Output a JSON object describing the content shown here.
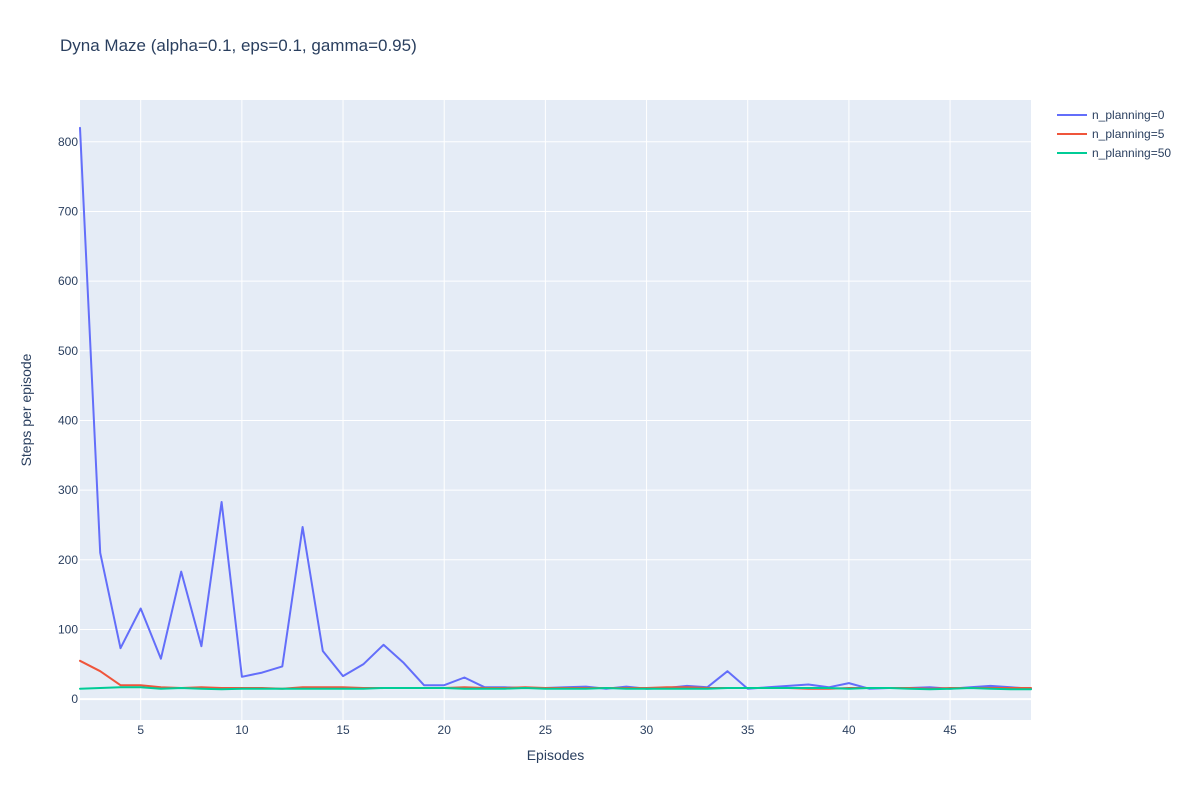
{
  "chart_data": {
    "type": "line",
    "title": "Dyna Maze (alpha=0.1, eps=0.1, gamma=0.95)",
    "xlabel": "Episodes",
    "ylabel": "Steps per episode",
    "xlim": [
      2,
      49
    ],
    "ylim": [
      -30,
      860
    ],
    "xticks": [
      5,
      10,
      15,
      20,
      25,
      30,
      35,
      40,
      45
    ],
    "yticks": [
      0,
      100,
      200,
      300,
      400,
      500,
      600,
      700,
      800
    ],
    "grid": true,
    "background": "#e5ecf6",
    "legend_position": "top-right",
    "x": [
      2,
      3,
      4,
      5,
      6,
      7,
      8,
      9,
      10,
      11,
      12,
      13,
      14,
      15,
      16,
      17,
      18,
      19,
      20,
      21,
      22,
      23,
      24,
      25,
      26,
      27,
      28,
      29,
      30,
      31,
      32,
      33,
      34,
      35,
      36,
      37,
      38,
      39,
      40,
      41,
      42,
      43,
      44,
      45,
      46,
      47,
      48,
      49
    ],
    "series": [
      {
        "name": "n_planning=0",
        "color": "#636efa",
        "values": [
          820,
          210,
          73,
          130,
          58,
          183,
          76,
          283,
          32,
          38,
          47,
          247,
          69,
          33,
          50,
          78,
          52,
          20,
          20,
          31,
          17,
          17,
          16,
          16,
          17,
          18,
          15,
          18,
          15,
          16,
          19,
          17,
          40,
          15,
          17,
          19,
          21,
          17,
          23,
          15,
          16,
          16,
          17,
          15,
          17,
          19,
          17,
          15
        ]
      },
      {
        "name": "n_planning=5",
        "color": "#ef553b",
        "values": [
          55,
          40,
          20,
          20,
          17,
          16,
          17,
          16,
          16,
          16,
          15,
          17,
          17,
          17,
          16,
          16,
          16,
          16,
          16,
          17,
          16,
          16,
          17,
          16,
          16,
          16,
          16,
          16,
          16,
          17,
          17,
          16,
          16,
          16,
          16,
          16,
          15,
          15,
          16,
          16,
          16,
          16,
          15,
          16,
          16,
          16,
          16,
          16
        ]
      },
      {
        "name": "n_planning=50",
        "color": "#00cc96",
        "values": [
          15,
          16,
          17,
          17,
          15,
          16,
          15,
          14,
          15,
          15,
          15,
          15,
          15,
          15,
          15,
          16,
          16,
          16,
          16,
          15,
          15,
          15,
          16,
          15,
          15,
          15,
          16,
          15,
          15,
          15,
          15,
          15,
          16,
          16,
          16,
          16,
          16,
          16,
          15,
          16,
          16,
          15,
          14,
          15,
          16,
          15,
          14,
          14
        ]
      }
    ]
  }
}
